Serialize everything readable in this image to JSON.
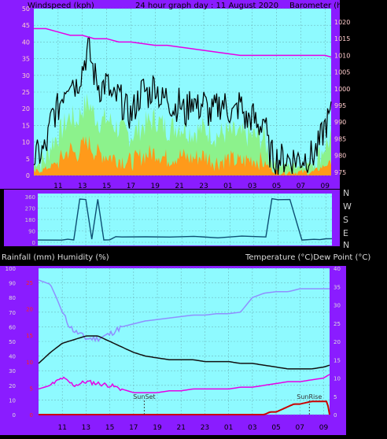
{
  "header": {
    "left": "Windspeed (kph)",
    "center": "24 hour graph day : 11 August 2020",
    "right": "Barometer (hpa)"
  },
  "middle": {
    "compass": [
      "N",
      "W",
      "S",
      "E",
      "N"
    ]
  },
  "bottom_header": {
    "left": "Rainfall (mm)  Humidity (%)",
    "right": "Temperature (°C)Dew Point (°C)"
  },
  "colors": {
    "frame": "#8a1cff",
    "plot_bg": "#8efaff",
    "grid": "#6fb8bf",
    "wind_avg": "#ff9a1a",
    "wind_gust": "#8cf28c",
    "wind_max": "#000000",
    "barometer": "#e600e6",
    "direction": "#0d4f73",
    "humidity": "#8f8fff",
    "temperature": "#111111",
    "dewpoint": "#e600e6",
    "rain": "#cc0000"
  },
  "chart_data": [
    {
      "type": "line",
      "name": "wind-barometer",
      "x_ticks": [
        "11",
        "13",
        "15",
        "17",
        "19",
        "21",
        "23",
        "01",
        "03",
        "05",
        "07",
        "09"
      ],
      "x_range_hours": [
        9,
        33.5
      ],
      "y_left_ticks": [
        "0",
        "5",
        "10",
        "15",
        "20",
        "25",
        "30",
        "35",
        "40",
        "45",
        "50"
      ],
      "y_left_range": [
        0,
        50
      ],
      "y_right_ticks": [
        "975",
        "980",
        "985",
        "990",
        "995",
        "1000",
        "1005",
        "1010",
        "1015",
        "1020"
      ],
      "y_right_range": [
        974,
        1024
      ],
      "grid": true,
      "series": [
        {
          "key": "wind_max",
          "x": [
            9,
            10,
            10.5,
            11,
            11.5,
            12,
            12.5,
            13,
            13.3,
            13.5,
            14,
            14.5,
            15,
            15.5,
            16,
            16.5,
            17,
            17.5,
            18,
            18.5,
            19,
            19.5,
            20,
            20.5,
            21,
            21.5,
            22,
            22.5,
            23,
            23.5,
            24,
            24.5,
            25,
            25.5,
            26,
            26.5,
            27,
            27.5,
            28,
            28.3,
            28.6,
            29,
            30,
            31,
            32,
            32.5,
            33,
            33.5
          ],
          "y": [
            5,
            8,
            18,
            20,
            26,
            30,
            27,
            32,
            36,
            38,
            30,
            26,
            28,
            22,
            24,
            20,
            18,
            22,
            26,
            24,
            28,
            22,
            24,
            20,
            22,
            18,
            24,
            20,
            22,
            18,
            20,
            22,
            20,
            18,
            22,
            16,
            18,
            14,
            18,
            8,
            6,
            5,
            5,
            5,
            6,
            9,
            15,
            18
          ]
        },
        {
          "key": "wind_gust",
          "x": [
            9,
            10,
            10.5,
            11,
            11.5,
            12,
            12.5,
            13,
            13.5,
            14,
            14.5,
            15,
            16,
            17,
            18,
            19,
            20,
            21,
            22,
            23,
            24,
            25,
            26,
            27,
            28,
            28.5,
            29,
            30,
            31,
            32,
            32.5,
            33,
            33.5
          ],
          "y": [
            3,
            5,
            10,
            12,
            15,
            18,
            16,
            20,
            22,
            18,
            16,
            17,
            14,
            12,
            15,
            17,
            14,
            15,
            13,
            14,
            12,
            13,
            12,
            12,
            11,
            5,
            3,
            3,
            3,
            4,
            6,
            9,
            11
          ]
        },
        {
          "key": "wind_avg",
          "x": [
            9,
            10,
            11,
            11.5,
            12,
            12.5,
            13,
            13.5,
            14,
            15,
            16,
            17,
            18,
            19,
            20,
            21,
            22,
            23,
            24,
            25,
            26,
            27,
            28,
            28.5,
            29,
            30,
            31,
            32,
            32.5,
            33,
            33.5
          ],
          "y": [
            1,
            2,
            4,
            6,
            8,
            6,
            9,
            10,
            7,
            6,
            5,
            4,
            6,
            7,
            5,
            6,
            5,
            6,
            4,
            5,
            4,
            5,
            4,
            2,
            1,
            1,
            1,
            1,
            2,
            3,
            4
          ]
        },
        {
          "key": "barometer",
          "x": [
            9,
            10,
            11,
            12,
            13,
            14,
            15,
            16,
            17,
            18,
            19,
            20,
            21,
            22,
            23,
            24,
            25,
            26,
            27,
            28,
            29,
            30,
            31,
            32,
            33,
            33.5
          ],
          "y": [
            1018,
            1018,
            1017,
            1016,
            1016,
            1015,
            1015,
            1014,
            1014,
            1013.5,
            1013,
            1013,
            1012.5,
            1012,
            1011.5,
            1011,
            1010.5,
            1010,
            1010,
            1010,
            1010,
            1010,
            1010,
            1010,
            1010,
            1009.5
          ]
        }
      ]
    },
    {
      "type": "line",
      "name": "wind-direction",
      "x_range_hours": [
        9,
        33.5
      ],
      "y_ticks": [
        "360",
        "270",
        "180",
        "90",
        "0"
      ],
      "y_range": [
        0,
        360
      ],
      "series": [
        {
          "key": "direction",
          "x": [
            9,
            11,
            11.5,
            12,
            12.5,
            13,
            13.5,
            14,
            14.5,
            15,
            15.5,
            16,
            18,
            20,
            22,
            24,
            26,
            28,
            28.5,
            29,
            30,
            31,
            32,
            32.5,
            33,
            33.5
          ],
          "y": [
            20,
            20,
            20,
            20,
            340,
            340,
            20,
            340,
            20,
            20,
            40,
            40,
            45,
            40,
            45,
            40,
            45,
            40,
            340,
            340,
            340,
            20,
            20,
            20,
            25,
            30
          ]
        }
      ]
    },
    {
      "type": "line",
      "name": "temperature-humidity-rain",
      "x_ticks": [
        "11",
        "13",
        "15",
        "17",
        "19",
        "21",
        "23",
        "01",
        "03",
        "05",
        "07",
        "09"
      ],
      "x_range_hours": [
        9,
        33.5
      ],
      "y_left_ticks": [
        "0",
        "10",
        "20",
        "30",
        "40",
        "50",
        "60",
        "70",
        "80",
        "90",
        "100"
      ],
      "y_left_range": [
        0,
        100
      ],
      "y_rain_ticks": [
        "0",
        "5",
        "10",
        "15",
        "20",
        "25"
      ],
      "y_right_ticks": [
        "0",
        "5",
        "10",
        "15",
        "20",
        "25",
        "30",
        "35",
        "40"
      ],
      "y_right_range": [
        0,
        40
      ],
      "annotations": [
        {
          "text": "SunSet",
          "x": 17.9
        },
        {
          "text": "SunRise",
          "x": 31.8
        }
      ],
      "grid": true,
      "series": [
        {
          "key": "humidity",
          "x": [
            9,
            10,
            10.5,
            11,
            11.5,
            12,
            12.5,
            13,
            14,
            15,
            16,
            17,
            18,
            19,
            20,
            21,
            22,
            23,
            24,
            25,
            26,
            26.5,
            27,
            28,
            29,
            30,
            31,
            32,
            33,
            33.5
          ],
          "y": [
            92,
            89,
            80,
            70,
            62,
            57,
            55,
            52,
            52,
            55,
            60,
            62,
            64,
            65,
            66,
            67,
            68,
            68,
            69,
            69,
            70,
            75,
            80,
            83,
            84,
            84,
            86,
            86,
            86,
            86
          ]
        },
        {
          "key": "temperature",
          "x": [
            9,
            10,
            11,
            12,
            13,
            14,
            15,
            16,
            17,
            18,
            19,
            20,
            21,
            22,
            23,
            24,
            25,
            26,
            27,
            28,
            29,
            30,
            31,
            32,
            33,
            33.5
          ],
          "y": [
            14,
            17,
            19.5,
            20.5,
            21.5,
            21.5,
            20,
            18.5,
            17,
            16,
            15.5,
            15,
            15,
            15,
            14.5,
            14.5,
            14.5,
            14,
            14,
            13.5,
            13,
            12.5,
            12.5,
            12.5,
            13,
            13.5
          ]
        },
        {
          "key": "dewpoint",
          "x": [
            9,
            10,
            11,
            12,
            13,
            14,
            15,
            16,
            17,
            18,
            19,
            20,
            21,
            22,
            23,
            24,
            25,
            26,
            27,
            28,
            29,
            30,
            31,
            32,
            33,
            33.5
          ],
          "y": [
            7,
            8,
            10,
            8,
            9,
            8.5,
            8,
            7,
            6,
            6,
            6,
            6.5,
            6.5,
            7,
            7,
            7,
            7,
            7.5,
            7.5,
            8,
            8.5,
            9,
            9,
            9.5,
            10,
            11
          ]
        },
        {
          "key": "rain",
          "x": [
            9,
            24,
            28,
            28.5,
            29,
            30,
            30.5,
            31,
            32,
            33,
            33.3,
            33.5
          ],
          "y": [
            0,
            0,
            0,
            0.5,
            0.5,
            1.5,
            2,
            2,
            2.5,
            2.5,
            2.5,
            0
          ]
        }
      ]
    }
  ]
}
